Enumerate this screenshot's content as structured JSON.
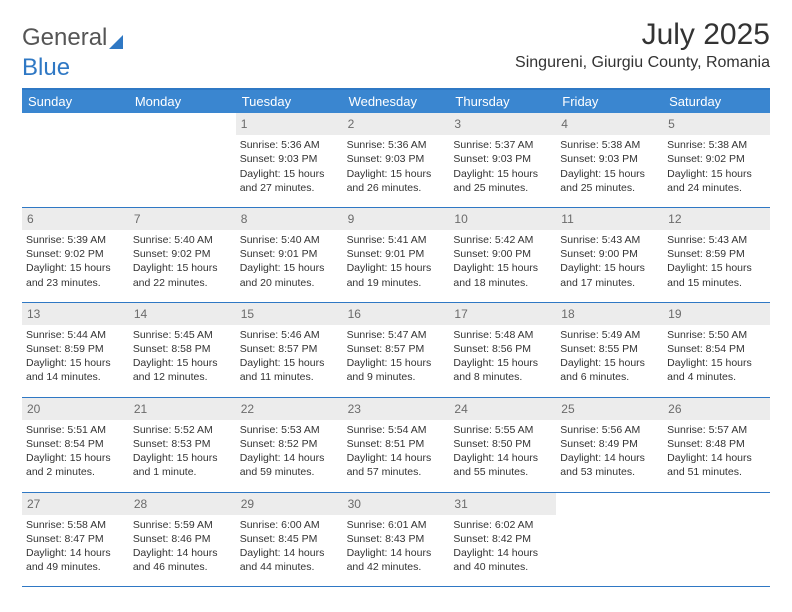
{
  "logo": {
    "word1": "General",
    "word2": "Blue"
  },
  "title": "July 2025",
  "location": "Singureni, Giurgiu County, Romania",
  "colors": {
    "header_bg": "#3a86d0",
    "rule": "#2f78c4",
    "daynum_bg": "#ececec",
    "text": "#333333"
  },
  "day_names": [
    "Sunday",
    "Monday",
    "Tuesday",
    "Wednesday",
    "Thursday",
    "Friday",
    "Saturday"
  ],
  "weeks": [
    [
      {
        "blank": true
      },
      {
        "blank": true
      },
      {
        "n": "1",
        "sunrise": "Sunrise: 5:36 AM",
        "sunset": "Sunset: 9:03 PM",
        "dl1": "Daylight: 15 hours",
        "dl2": "and 27 minutes."
      },
      {
        "n": "2",
        "sunrise": "Sunrise: 5:36 AM",
        "sunset": "Sunset: 9:03 PM",
        "dl1": "Daylight: 15 hours",
        "dl2": "and 26 minutes."
      },
      {
        "n": "3",
        "sunrise": "Sunrise: 5:37 AM",
        "sunset": "Sunset: 9:03 PM",
        "dl1": "Daylight: 15 hours",
        "dl2": "and 25 minutes."
      },
      {
        "n": "4",
        "sunrise": "Sunrise: 5:38 AM",
        "sunset": "Sunset: 9:03 PM",
        "dl1": "Daylight: 15 hours",
        "dl2": "and 25 minutes."
      },
      {
        "n": "5",
        "sunrise": "Sunrise: 5:38 AM",
        "sunset": "Sunset: 9:02 PM",
        "dl1": "Daylight: 15 hours",
        "dl2": "and 24 minutes."
      }
    ],
    [
      {
        "n": "6",
        "sunrise": "Sunrise: 5:39 AM",
        "sunset": "Sunset: 9:02 PM",
        "dl1": "Daylight: 15 hours",
        "dl2": "and 23 minutes."
      },
      {
        "n": "7",
        "sunrise": "Sunrise: 5:40 AM",
        "sunset": "Sunset: 9:02 PM",
        "dl1": "Daylight: 15 hours",
        "dl2": "and 22 minutes."
      },
      {
        "n": "8",
        "sunrise": "Sunrise: 5:40 AM",
        "sunset": "Sunset: 9:01 PM",
        "dl1": "Daylight: 15 hours",
        "dl2": "and 20 minutes."
      },
      {
        "n": "9",
        "sunrise": "Sunrise: 5:41 AM",
        "sunset": "Sunset: 9:01 PM",
        "dl1": "Daylight: 15 hours",
        "dl2": "and 19 minutes."
      },
      {
        "n": "10",
        "sunrise": "Sunrise: 5:42 AM",
        "sunset": "Sunset: 9:00 PM",
        "dl1": "Daylight: 15 hours",
        "dl2": "and 18 minutes."
      },
      {
        "n": "11",
        "sunrise": "Sunrise: 5:43 AM",
        "sunset": "Sunset: 9:00 PM",
        "dl1": "Daylight: 15 hours",
        "dl2": "and 17 minutes."
      },
      {
        "n": "12",
        "sunrise": "Sunrise: 5:43 AM",
        "sunset": "Sunset: 8:59 PM",
        "dl1": "Daylight: 15 hours",
        "dl2": "and 15 minutes."
      }
    ],
    [
      {
        "n": "13",
        "sunrise": "Sunrise: 5:44 AM",
        "sunset": "Sunset: 8:59 PM",
        "dl1": "Daylight: 15 hours",
        "dl2": "and 14 minutes."
      },
      {
        "n": "14",
        "sunrise": "Sunrise: 5:45 AM",
        "sunset": "Sunset: 8:58 PM",
        "dl1": "Daylight: 15 hours",
        "dl2": "and 12 minutes."
      },
      {
        "n": "15",
        "sunrise": "Sunrise: 5:46 AM",
        "sunset": "Sunset: 8:57 PM",
        "dl1": "Daylight: 15 hours",
        "dl2": "and 11 minutes."
      },
      {
        "n": "16",
        "sunrise": "Sunrise: 5:47 AM",
        "sunset": "Sunset: 8:57 PM",
        "dl1": "Daylight: 15 hours",
        "dl2": "and 9 minutes."
      },
      {
        "n": "17",
        "sunrise": "Sunrise: 5:48 AM",
        "sunset": "Sunset: 8:56 PM",
        "dl1": "Daylight: 15 hours",
        "dl2": "and 8 minutes."
      },
      {
        "n": "18",
        "sunrise": "Sunrise: 5:49 AM",
        "sunset": "Sunset: 8:55 PM",
        "dl1": "Daylight: 15 hours",
        "dl2": "and 6 minutes."
      },
      {
        "n": "19",
        "sunrise": "Sunrise: 5:50 AM",
        "sunset": "Sunset: 8:54 PM",
        "dl1": "Daylight: 15 hours",
        "dl2": "and 4 minutes."
      }
    ],
    [
      {
        "n": "20",
        "sunrise": "Sunrise: 5:51 AM",
        "sunset": "Sunset: 8:54 PM",
        "dl1": "Daylight: 15 hours",
        "dl2": "and 2 minutes."
      },
      {
        "n": "21",
        "sunrise": "Sunrise: 5:52 AM",
        "sunset": "Sunset: 8:53 PM",
        "dl1": "Daylight: 15 hours",
        "dl2": "and 1 minute."
      },
      {
        "n": "22",
        "sunrise": "Sunrise: 5:53 AM",
        "sunset": "Sunset: 8:52 PM",
        "dl1": "Daylight: 14 hours",
        "dl2": "and 59 minutes."
      },
      {
        "n": "23",
        "sunrise": "Sunrise: 5:54 AM",
        "sunset": "Sunset: 8:51 PM",
        "dl1": "Daylight: 14 hours",
        "dl2": "and 57 minutes."
      },
      {
        "n": "24",
        "sunrise": "Sunrise: 5:55 AM",
        "sunset": "Sunset: 8:50 PM",
        "dl1": "Daylight: 14 hours",
        "dl2": "and 55 minutes."
      },
      {
        "n": "25",
        "sunrise": "Sunrise: 5:56 AM",
        "sunset": "Sunset: 8:49 PM",
        "dl1": "Daylight: 14 hours",
        "dl2": "and 53 minutes."
      },
      {
        "n": "26",
        "sunrise": "Sunrise: 5:57 AM",
        "sunset": "Sunset: 8:48 PM",
        "dl1": "Daylight: 14 hours",
        "dl2": "and 51 minutes."
      }
    ],
    [
      {
        "n": "27",
        "sunrise": "Sunrise: 5:58 AM",
        "sunset": "Sunset: 8:47 PM",
        "dl1": "Daylight: 14 hours",
        "dl2": "and 49 minutes."
      },
      {
        "n": "28",
        "sunrise": "Sunrise: 5:59 AM",
        "sunset": "Sunset: 8:46 PM",
        "dl1": "Daylight: 14 hours",
        "dl2": "and 46 minutes."
      },
      {
        "n": "29",
        "sunrise": "Sunrise: 6:00 AM",
        "sunset": "Sunset: 8:45 PM",
        "dl1": "Daylight: 14 hours",
        "dl2": "and 44 minutes."
      },
      {
        "n": "30",
        "sunrise": "Sunrise: 6:01 AM",
        "sunset": "Sunset: 8:43 PM",
        "dl1": "Daylight: 14 hours",
        "dl2": "and 42 minutes."
      },
      {
        "n": "31",
        "sunrise": "Sunrise: 6:02 AM",
        "sunset": "Sunset: 8:42 PM",
        "dl1": "Daylight: 14 hours",
        "dl2": "and 40 minutes."
      },
      {
        "blank": true
      },
      {
        "blank": true
      }
    ]
  ]
}
